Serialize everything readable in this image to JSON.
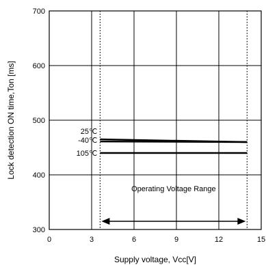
{
  "chart_data": {
    "type": "line",
    "xlabel": "Supply voltage, Vcc[V]",
    "ylabel": "Lock detection ON time,Ton [ms]",
    "xlim": [
      0,
      15
    ],
    "ylim": [
      300,
      700
    ],
    "x_ticks": [
      "0",
      "3",
      "6",
      "9",
      "12",
      "15"
    ],
    "y_ticks": [
      "300",
      "400",
      "500",
      "600",
      "700"
    ],
    "grid": true,
    "series": [
      {
        "name": "25℃",
        "x": [
          3.6,
          14
        ],
        "y": [
          465,
          460
        ]
      },
      {
        "name": "-40℃",
        "x": [
          3.6,
          14
        ],
        "y": [
          461,
          460
        ]
      },
      {
        "name": "105℃",
        "x": [
          3.6,
          14
        ],
        "y": [
          440,
          440
        ]
      }
    ],
    "operating_range": {
      "label": "Operating Voltage Range",
      "x_start": 3.6,
      "x_end": 14
    }
  }
}
